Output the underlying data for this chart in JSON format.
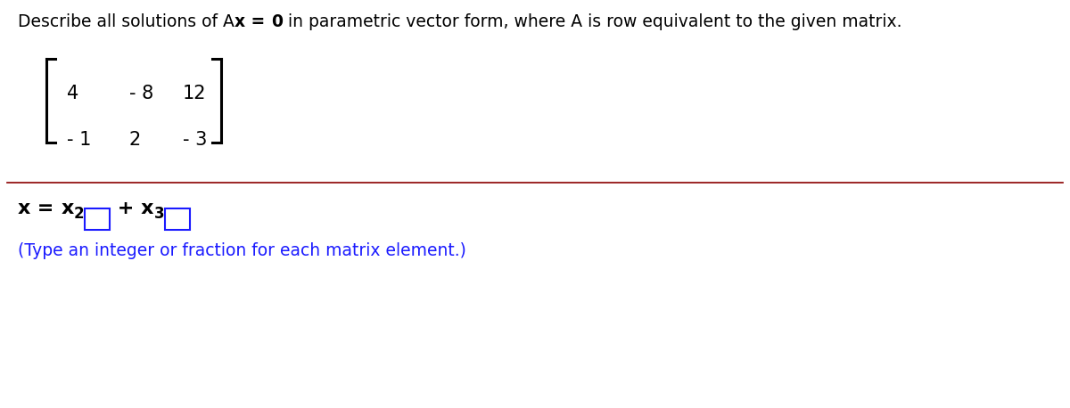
{
  "bg_color": "#ffffff",
  "text_color": "#000000",
  "blue_color": "#1a1aff",
  "divider_color": "#8b0000",
  "title_parts": [
    {
      "text": "Describe all solutions of A",
      "bold": false
    },
    {
      "text": "x",
      "bold": true
    },
    {
      "text": " = ",
      "bold": true
    },
    {
      "text": "0",
      "bold": true
    },
    {
      "text": " in parametric vector form, where A is row equivalent to the given matrix.",
      "bold": false
    }
  ],
  "title_fontsize": 13.5,
  "matrix_row1": [
    "4",
    "- 8",
    "12"
  ],
  "matrix_row2": [
    "- 1",
    "2",
    "- 3"
  ],
  "matrix_fontsize": 15,
  "eq_fontsize": 16,
  "hint_text": "(Type an integer or fraction for each matrix element.)",
  "hint_fontsize": 13.5
}
